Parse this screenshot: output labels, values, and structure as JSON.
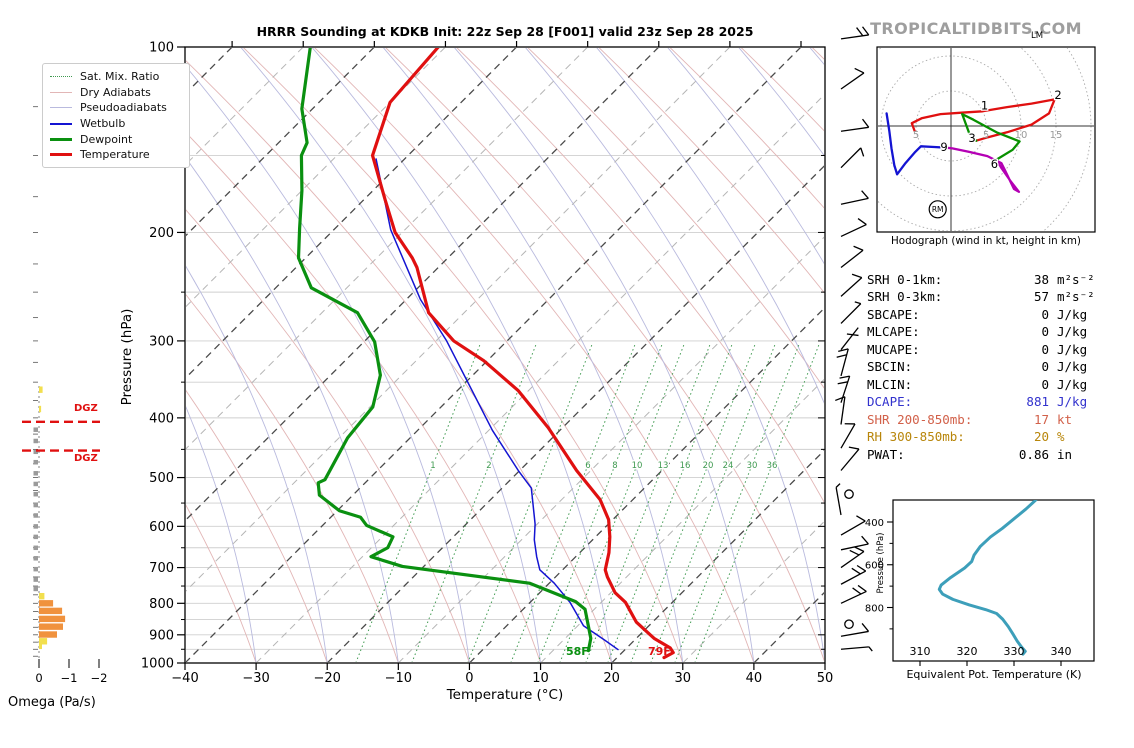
{
  "header": {
    "title": "HRRR Sounding at KDKB Init: 22z Sep 28 [F001] valid 23z Sep 28 2025",
    "logo": "TROPICALTIDBITS.COM"
  },
  "legend": {
    "items": [
      {
        "label": "Sat. Mix. Ratio"
      },
      {
        "label": "Dry Adiabats"
      },
      {
        "label": "Pseudoadiabats"
      },
      {
        "label": "Wetbulb"
      },
      {
        "label": "Dewpoint"
      },
      {
        "label": "Temperature"
      }
    ]
  },
  "skewt": {
    "xlabel": "Temperature (°C)",
    "ylabel": "Pressure (hPa)",
    "surface_temp_label": "79F",
    "surface_dewp_label": "58F",
    "dgz_label": "DGZ"
  },
  "omega": {
    "label": "Omega (Pa/s)",
    "tick_labels": [
      "0",
      "−1",
      "−2"
    ]
  },
  "hodograph": {
    "caption": "Hodograph (wind in kt, height in km)",
    "rm_label": "RM",
    "lm_label": "LM"
  },
  "theta_e": {
    "xlabel": "Equivalent Pot. Temperature (K)",
    "ylabel": "Pressure (hPa)"
  },
  "indices": {
    "rows": [
      {
        "label": "SRH 0-1km:",
        "value": "38",
        "unit": "m²s⁻²",
        "color": "#000000"
      },
      {
        "label": "SRH 0-3km:",
        "value": "57",
        "unit": "m²s⁻²",
        "color": "#000000"
      },
      {
        "label": "SBCAPE:",
        "value": "0",
        "unit": "J/kg",
        "color": "#000000"
      },
      {
        "label": "MLCAPE:",
        "value": "0",
        "unit": "J/kg",
        "color": "#000000"
      },
      {
        "label": "MUCAPE:",
        "value": "0",
        "unit": "J/kg",
        "color": "#000000"
      },
      {
        "label": "SBCIN:",
        "value": "0",
        "unit": "J/kg",
        "color": "#000000"
      },
      {
        "label": "MLCIN:",
        "value": "0",
        "unit": "J/kg",
        "color": "#000000"
      },
      {
        "label": "DCAPE:",
        "value": "881",
        "unit": "J/kg",
        "color": "#3232cd"
      },
      {
        "label": "SHR 200-850mb:",
        "value": "17",
        "unit": "kt",
        "color": "#d2614a"
      },
      {
        "label": "RH 300-850mb:",
        "value": "20",
        "unit": "%",
        "color": "#b8860b"
      },
      {
        "label": "PWAT:",
        "value": "0.86",
        "unit": "in",
        "color": "#000000"
      }
    ]
  },
  "chart_data": [
    {
      "type": "line",
      "name": "skewt_sounding",
      "title": "HRRR Sounding at KDKB Init: 22z Sep 28 [F001] valid 23z Sep 28 2025",
      "xlabel": "Temperature (°C)",
      "ylabel": "Pressure (hPa)",
      "xlim": [
        -40,
        50
      ],
      "ylim": [
        1050,
        100
      ],
      "y_scale": "log",
      "x_ticks": [
        -40,
        -30,
        -20,
        -10,
        0,
        10,
        20,
        30,
        40,
        50
      ],
      "pressure_ticks": [
        100,
        200,
        300,
        400,
        500,
        600,
        700,
        800,
        900,
        1000
      ],
      "pressure_minor": [
        150,
        250,
        350,
        450,
        550,
        650,
        750,
        850,
        950
      ],
      "mixing_ratio_lines": [
        {
          "value": "1",
          "x465": 433,
          "labeled": true
        },
        {
          "value": "2",
          "x465": 489,
          "labeled": true
        },
        {
          "value": "4",
          "x465": 545,
          "labeled": false
        },
        {
          "value": "6",
          "x465": 588,
          "labeled": true
        },
        {
          "value": "8",
          "x465": 615,
          "labeled": true
        },
        {
          "value": "10",
          "x465": 637,
          "labeled": true
        },
        {
          "value": "13",
          "x465": 663,
          "labeled": true
        },
        {
          "value": "16",
          "x465": 685,
          "labeled": true
        },
        {
          "value": "20",
          "x465": 708,
          "labeled": true
        },
        {
          "value": "24",
          "x465": 728,
          "labeled": true
        },
        {
          "value": "30",
          "x465": 752,
          "labeled": true
        },
        {
          "value": "36",
          "x465": 772,
          "labeled": true
        }
      ],
      "series": [
        {
          "name": "Temperature",
          "color": "#e01010",
          "width": 3.2,
          "points_p_T": [
            [
              100,
              -91
            ],
            [
              123,
              -90
            ],
            [
              150,
              -85
            ],
            [
              177,
              -77
            ],
            [
              200,
              -71
            ],
            [
              220,
              -65
            ],
            [
              228,
              -63
            ],
            [
              270,
              -55
            ],
            [
              300,
              -47.5
            ],
            [
              323,
              -40.5
            ],
            [
              361,
              -31.5
            ],
            [
              415,
              -22
            ],
            [
              487,
              -12
            ],
            [
              543,
              -4.6
            ],
            [
              585,
              -0.6
            ],
            [
              624,
              2
            ],
            [
              662,
              4.1
            ],
            [
              706,
              6
            ],
            [
              725,
              7.3
            ],
            [
              769,
              10.6
            ],
            [
              797,
              13.4
            ],
            [
              858,
              17.7
            ],
            [
              912,
              22.5
            ],
            [
              945,
              26.1
            ],
            [
              962,
              27.2
            ],
            [
              980,
              26.6
            ]
          ]
        },
        {
          "name": "Dewpoint",
          "color": "#0a9010",
          "width": 3.2,
          "points_p_T": [
            [
              100,
              -109
            ],
            [
              126,
              -101.5
            ],
            [
              143,
              -96
            ],
            [
              150,
              -95
            ],
            [
              171,
              -90
            ],
            [
              197,
              -85
            ],
            [
              220,
              -81
            ],
            [
              246,
              -75
            ],
            [
              270,
              -65
            ],
            [
              301,
              -58.5
            ],
            [
              341,
              -53
            ],
            [
              384,
              -49.6
            ],
            [
              431,
              -48.8
            ],
            [
              504,
              -46.1
            ],
            [
              510,
              -46.6
            ],
            [
              534,
              -44.7
            ],
            [
              566,
              -39.7
            ],
            [
              580,
              -35.8
            ],
            [
              598,
              -33.8
            ],
            [
              624,
              -28.5
            ],
            [
              650,
              -27.7
            ],
            [
              672,
              -28.8
            ],
            [
              697,
              -23
            ],
            [
              742,
              -2.8
            ],
            [
              795,
              6.3
            ],
            [
              818,
              8.7
            ],
            [
              912,
              13.6
            ],
            [
              955,
              15
            ]
          ]
        },
        {
          "name": "Wetbulb",
          "color": "#1414d2",
          "width": 1.5,
          "points_p_T": [
            [
              152,
              -84
            ],
            [
              198,
              -72
            ],
            [
              257,
              -58
            ],
            [
              300,
              -48.5
            ],
            [
              419,
              -29.5
            ],
            [
              487,
              -20.2
            ],
            [
              520,
              -15.9
            ],
            [
              595,
              -10.3
            ],
            [
              631,
              -8.2
            ],
            [
              672,
              -5.5
            ],
            [
              706,
              -3.2
            ],
            [
              742,
              0.7
            ],
            [
              797,
              5.6
            ],
            [
              870,
              10.8
            ],
            [
              918,
              15.8
            ],
            [
              951,
              19
            ]
          ]
        }
      ],
      "dgz_pressures": [
        406,
        452
      ],
      "wind_barbs": [
        {
          "p": 97,
          "rot": -8,
          "kind": "2t"
        },
        {
          "p": 117,
          "rot": -35,
          "kind": "1t"
        },
        {
          "p": 137,
          "rot": -8,
          "kind": "1t"
        },
        {
          "p": 157,
          "rot": -45,
          "kind": "T"
        },
        {
          "p": 180,
          "rot": -12,
          "kind": "1t"
        },
        {
          "p": 203,
          "rot": -25,
          "kind": "1t"
        },
        {
          "p": 228,
          "rot": -38,
          "kind": "1t"
        },
        {
          "p": 254,
          "rot": -42,
          "kind": "1t"
        },
        {
          "p": 281,
          "rot": -45,
          "kind": "ht"
        },
        {
          "p": 310,
          "rot": -52,
          "kind": "X"
        },
        {
          "p": 342,
          "rot": -75,
          "kind": "2t"
        },
        {
          "p": 378,
          "rot": -72,
          "kind": "2t"
        },
        {
          "p": 410,
          "rot": -82,
          "kind": "1t"
        },
        {
          "p": 448,
          "rot": -60,
          "kind": "1t"
        },
        {
          "p": 487,
          "rot": -50,
          "kind": "1t"
        },
        {
          "p": 532,
          "rot": 0,
          "kind": "calm"
        },
        {
          "p": 575,
          "rot": -100,
          "kind": "hook"
        },
        {
          "p": 620,
          "rot": -30,
          "kind": "1t"
        },
        {
          "p": 655,
          "rot": -12,
          "kind": "1t"
        },
        {
          "p": 700,
          "rot": -35,
          "kind": "2t"
        },
        {
          "p": 745,
          "rot": -28,
          "kind": "2t"
        },
        {
          "p": 800,
          "rot": -25,
          "kind": "2t"
        },
        {
          "p": 865,
          "rot": 0,
          "kind": "calm"
        },
        {
          "p": 905,
          "rot": -10,
          "kind": "1t"
        },
        {
          "p": 950,
          "rot": -5,
          "kind": "hook"
        }
      ]
    },
    {
      "type": "bar",
      "name": "omega_profile",
      "xlabel": "Omega (Pa/s)",
      "x_ticks": [
        0,
        -1,
        -2
      ],
      "bars": [
        {
          "p": 360,
          "value": -0.12,
          "color": "#f2df4e"
        },
        {
          "p": 387,
          "value": -0.07,
          "color": "#f2df4e"
        },
        {
          "p": 779,
          "value": -0.18,
          "color": "#f2df4e"
        },
        {
          "p": 800,
          "value": -0.47,
          "color": "#f0923e"
        },
        {
          "p": 823,
          "value": -0.77,
          "color": "#f0923e"
        },
        {
          "p": 848,
          "value": -0.87,
          "color": "#f0923e"
        },
        {
          "p": 873,
          "value": -0.8,
          "color": "#f0923e"
        },
        {
          "p": 899,
          "value": -0.6,
          "color": "#f0923e"
        },
        {
          "p": 922,
          "value": -0.27,
          "color": "#f2df4e"
        },
        {
          "p": 938,
          "value": -0.1,
          "color": "#f2df4e"
        }
      ],
      "near_zero_pressures": [
        418,
        436,
        454,
        472,
        492,
        512,
        532,
        554,
        576,
        600,
        624,
        650,
        676,
        704,
        732,
        758
      ],
      "near_zero_color": "#9a9a9a"
    },
    {
      "type": "line",
      "name": "hodograph",
      "caption": "Hodograph (wind in kt, height in km)",
      "units": "kt",
      "ring_radii": [
        5,
        10,
        15,
        20
      ],
      "axis_tick_labels": [
        {
          "t": "5",
          "u": -5
        },
        {
          "t": "5",
          "u": 5
        },
        {
          "t": "10",
          "u": 10
        },
        {
          "t": "15",
          "u": 15
        }
      ],
      "height_labels_km": [
        {
          "t": "1",
          "u": 4.8,
          "v": 2.9
        },
        {
          "t": "2",
          "u": 15.3,
          "v": 4.4
        },
        {
          "t": "3",
          "u": 3.0,
          "v": -1.7
        },
        {
          "t": "6",
          "u": 6.2,
          "v": -5.4
        },
        {
          "t": "9",
          "u": -1.0,
          "v": -3.0
        }
      ],
      "rm_marker": {
        "u": -1.9,
        "v": -11.9
      },
      "segments": [
        {
          "layer": "0-3km",
          "color": "#e01010",
          "points_uv": [
            [
              -5.2,
              -0.7
            ],
            [
              -5.6,
              0.4
            ],
            [
              -4.2,
              1.1
            ],
            [
              -1.5,
              1.7
            ],
            [
              1.5,
              1.9
            ],
            [
              4.5,
              2.1
            ],
            [
              8,
              2.7
            ],
            [
              11.5,
              3.2
            ],
            [
              14.8,
              3.8
            ],
            [
              14,
              1.8
            ],
            [
              11.5,
              0.2
            ],
            [
              8,
              -0.9
            ],
            [
              5.3,
              -1.6
            ],
            [
              3.6,
              -2.1
            ]
          ]
        },
        {
          "layer": "3-6km",
          "color": "#089000",
          "points_uv": [
            [
              3.6,
              -2.1
            ],
            [
              2.7,
              -1.3
            ],
            [
              1.6,
              1.7
            ],
            [
              3.2,
              0.9
            ],
            [
              6.5,
              -0.9
            ],
            [
              9.8,
              -2.2
            ],
            [
              8.8,
              -3.4
            ],
            [
              6.5,
              -4.8
            ]
          ]
        },
        {
          "layer": "6-9km",
          "color": "#b400b4",
          "points_uv": [
            [
              6.5,
              -4.8
            ],
            [
              7.2,
              -6
            ],
            [
              8.6,
              -8
            ],
            [
              9.7,
              -9.4
            ],
            [
              9,
              -9
            ],
            [
              7.7,
              -6.3
            ],
            [
              7.2,
              -5.3
            ],
            [
              5.2,
              -4.3
            ],
            [
              2.6,
              -3.7
            ],
            [
              0.2,
              -3.2
            ],
            [
              -0.7,
              -3.1
            ]
          ]
        },
        {
          "layer": "9km+",
          "color": "#1414d2",
          "points_uv": [
            [
              -0.7,
              -3.1
            ],
            [
              -2.4,
              -3
            ],
            [
              -4.3,
              -2.9
            ],
            [
              -5.2,
              -3.8
            ],
            [
              -6.5,
              -5.3
            ],
            [
              -7.7,
              -6.9
            ],
            [
              -8.1,
              -5.6
            ],
            [
              -8.5,
              -3.2
            ],
            [
              -8.8,
              -0.8
            ],
            [
              -9.2,
              1.8
            ]
          ]
        }
      ]
    },
    {
      "type": "line",
      "name": "theta_e_profile",
      "xlabel": "Equivalent Pot. Temperature (K)",
      "ylabel": "Pressure (hPa)",
      "x_ticks": [
        310,
        320,
        330,
        340
      ],
      "y_ticks": [
        400,
        600,
        800
      ],
      "y_minor": [
        500,
        700,
        900
      ],
      "color": "#3d9fba",
      "points_thetae_p": [
        [
          334.6,
          298
        ],
        [
          332.5,
          340
        ],
        [
          330,
          385
        ],
        [
          327.5,
          430
        ],
        [
          325,
          470
        ],
        [
          322.8,
          515
        ],
        [
          321.5,
          555
        ],
        [
          321,
          585
        ],
        [
          319.5,
          615
        ],
        [
          316.5,
          660
        ],
        [
          314.5,
          695
        ],
        [
          314.1,
          715
        ],
        [
          314.8,
          737
        ],
        [
          317,
          762
        ],
        [
          320.5,
          788
        ],
        [
          324,
          810
        ],
        [
          326.3,
          828
        ],
        [
          327.6,
          855
        ],
        [
          328.8,
          890
        ],
        [
          329.8,
          925
        ],
        [
          330.7,
          958
        ],
        [
          331.6,
          985
        ],
        [
          332.4,
          1005
        ],
        [
          331.9,
          1018
        ]
      ]
    }
  ]
}
